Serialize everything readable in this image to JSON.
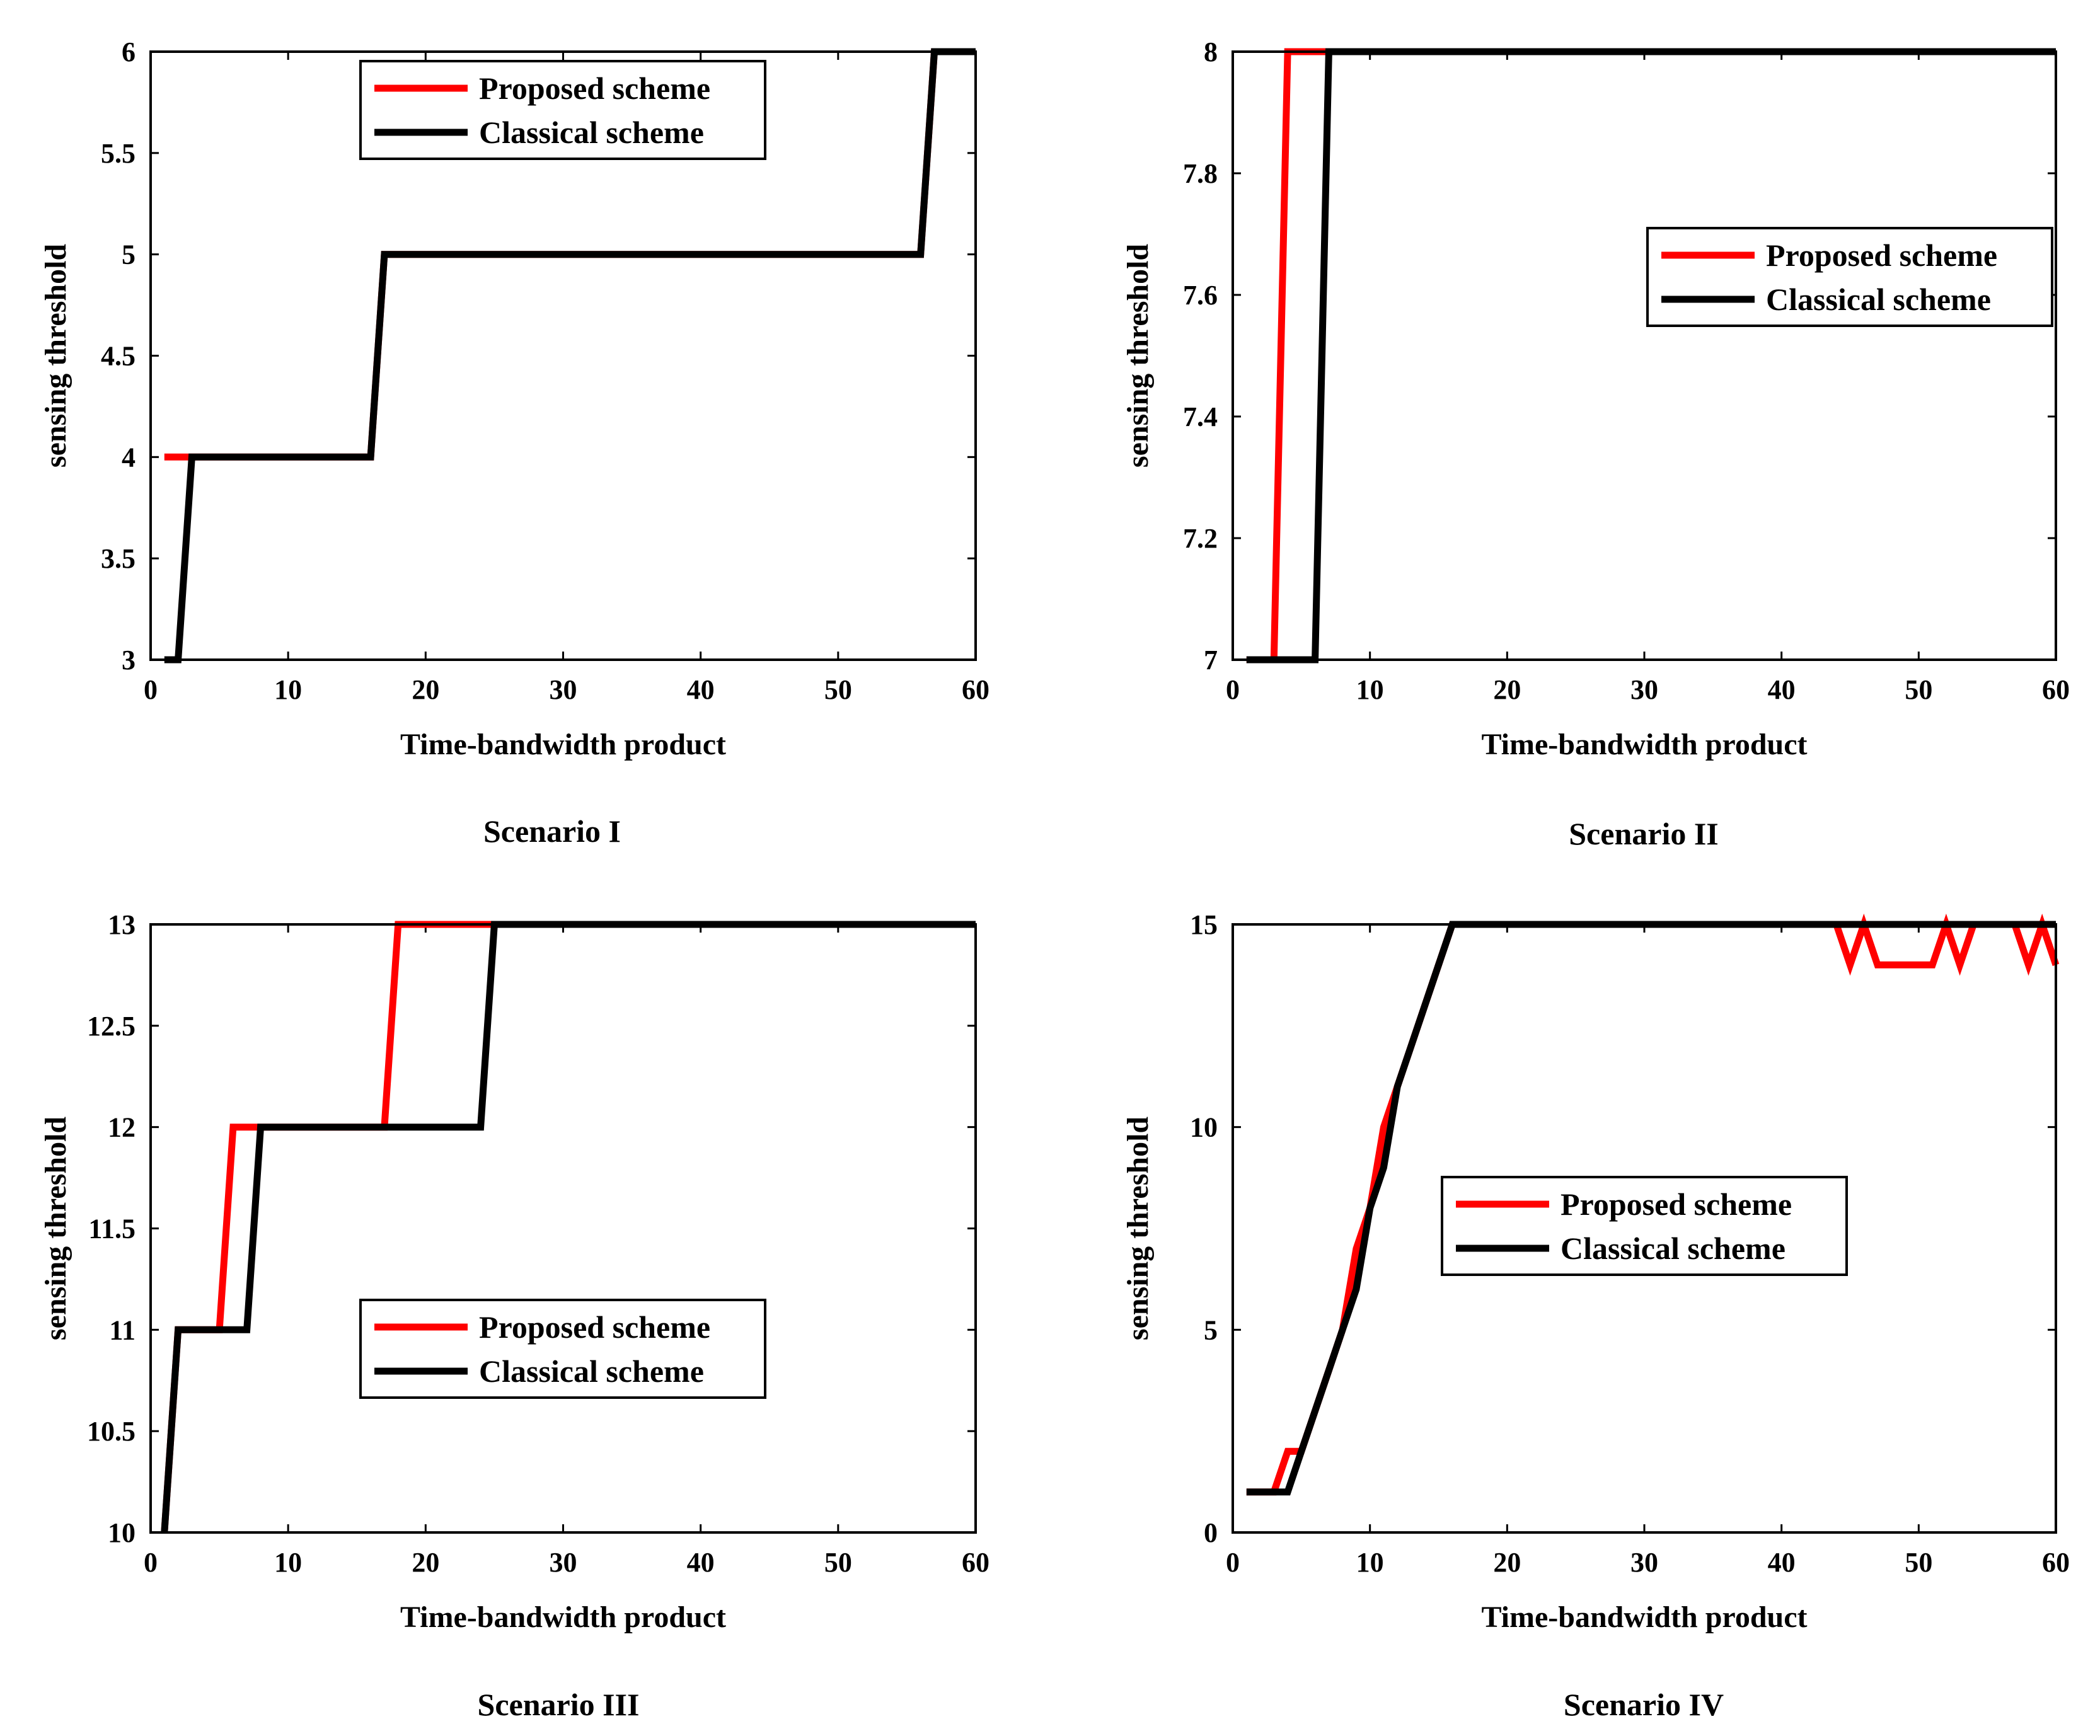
{
  "colors": {
    "proposed": "#ff0000",
    "classical": "#000000",
    "axis": "#000000",
    "background": "#ffffff"
  },
  "chart_data": [
    {
      "type": "line",
      "caption": "Scenario I",
      "xlabel": "Time-bandwidth product",
      "ylabel": "sensing threshold",
      "xlim": [
        0,
        60
      ],
      "ylim": [
        3,
        6
      ],
      "xticks": [
        0,
        10,
        20,
        30,
        40,
        50,
        60
      ],
      "xtick_labels": [
        "0",
        "10",
        "20",
        "30",
        "40",
        "50",
        "60"
      ],
      "yticks": [
        3,
        3.5,
        4,
        4.5,
        5,
        5.5,
        6
      ],
      "ytick_labels": [
        "3",
        "3.5",
        "4",
        "4.5",
        "5",
        "5.5",
        "6"
      ],
      "legend_position": "top-center",
      "series": [
        {
          "name": "Proposed scheme",
          "color": "#ff0000",
          "x": [
            1,
            3,
            16,
            17,
            56,
            57,
            60
          ],
          "y": [
            4,
            4,
            4,
            5,
            5,
            6,
            6
          ]
        },
        {
          "name": "Classical scheme",
          "color": "#000000",
          "x": [
            1,
            2,
            3,
            16,
            17,
            56,
            57,
            60
          ],
          "y": [
            3,
            3,
            4,
            4,
            5,
            5,
            6,
            6
          ]
        }
      ]
    },
    {
      "type": "line",
      "caption": "Scenario II",
      "xlabel": "Time-bandwidth product",
      "ylabel": "sensing threshold",
      "xlim": [
        0,
        60
      ],
      "ylim": [
        7,
        8
      ],
      "xticks": [
        0,
        10,
        20,
        30,
        40,
        50,
        60
      ],
      "xtick_labels": [
        "0",
        "10",
        "20",
        "30",
        "40",
        "50",
        "60"
      ],
      "yticks": [
        7,
        7.2,
        7.4,
        7.6,
        7.8,
        8
      ],
      "ytick_labels": [
        "7",
        "7.2",
        "7.4",
        "7.6",
        "7.8",
        "8"
      ],
      "legend_position": "upper-right",
      "series": [
        {
          "name": "Proposed scheme",
          "color": "#ff0000",
          "x": [
            1,
            3,
            4,
            60
          ],
          "y": [
            7,
            7,
            8,
            8
          ]
        },
        {
          "name": "Classical scheme",
          "color": "#000000",
          "x": [
            1,
            6,
            7,
            60
          ],
          "y": [
            7,
            7,
            8,
            8
          ]
        }
      ]
    },
    {
      "type": "line",
      "caption": "Scenario III",
      "xlabel": "Time-bandwidth product",
      "ylabel": "sensing threshold",
      "xlim": [
        0,
        60
      ],
      "ylim": [
        10,
        13
      ],
      "xticks": [
        0,
        10,
        20,
        30,
        40,
        50,
        60
      ],
      "xtick_labels": [
        "0",
        "10",
        "20",
        "30",
        "40",
        "50",
        "60"
      ],
      "yticks": [
        10,
        10.5,
        11,
        11.5,
        12,
        12.5,
        13
      ],
      "ytick_labels": [
        "10",
        "10.5",
        "11",
        "11.5",
        "12",
        "12.5",
        "13"
      ],
      "legend_position": "center",
      "series": [
        {
          "name": "Proposed scheme",
          "color": "#ff0000",
          "x": [
            1,
            2,
            5,
            6,
            17,
            18,
            60
          ],
          "y": [
            10,
            11,
            11,
            12,
            12,
            13,
            13
          ]
        },
        {
          "name": "Classical scheme",
          "color": "#000000",
          "x": [
            1,
            2,
            7,
            8,
            24,
            25,
            60
          ],
          "y": [
            10,
            11,
            11,
            12,
            12,
            13,
            13
          ]
        }
      ]
    },
    {
      "type": "line",
      "caption": "Scenario IV",
      "xlabel": "Time-bandwidth product",
      "ylabel": "sensing threshold",
      "xlim": [
        0,
        60
      ],
      "ylim": [
        0,
        15
      ],
      "xticks": [
        0,
        10,
        20,
        30,
        40,
        50,
        60
      ],
      "xtick_labels": [
        "0",
        "10",
        "20",
        "30",
        "40",
        "50",
        "60"
      ],
      "yticks": [
        0,
        5,
        10,
        15
      ],
      "ytick_labels": [
        "0",
        "5",
        "10",
        "15"
      ],
      "legend_position": "center",
      "series": [
        {
          "name": "Proposed scheme",
          "color": "#ff0000",
          "x": [
            1,
            3,
            4,
            5,
            6,
            7,
            8,
            9,
            10,
            11,
            12,
            13,
            14,
            15,
            16,
            44,
            45,
            46,
            47,
            48,
            49,
            50,
            51,
            52,
            53,
            54,
            55,
            56,
            57,
            58,
            59,
            60
          ],
          "y": [
            1,
            1,
            2,
            2,
            3,
            4,
            5,
            7,
            8,
            10,
            11,
            12,
            13,
            14,
            15,
            15,
            14,
            15,
            14,
            14,
            14,
            14,
            14,
            15,
            14,
            15,
            15,
            15,
            15,
            14,
            15,
            14
          ]
        },
        {
          "name": "Classical scheme",
          "color": "#000000",
          "x": [
            1,
            4,
            5,
            6,
            7,
            8,
            9,
            10,
            11,
            12,
            13,
            14,
            15,
            16,
            60
          ],
          "y": [
            1,
            1,
            2,
            3,
            4,
            5,
            6,
            8,
            9,
            11,
            12,
            13,
            14,
            15,
            15
          ]
        }
      ]
    }
  ]
}
